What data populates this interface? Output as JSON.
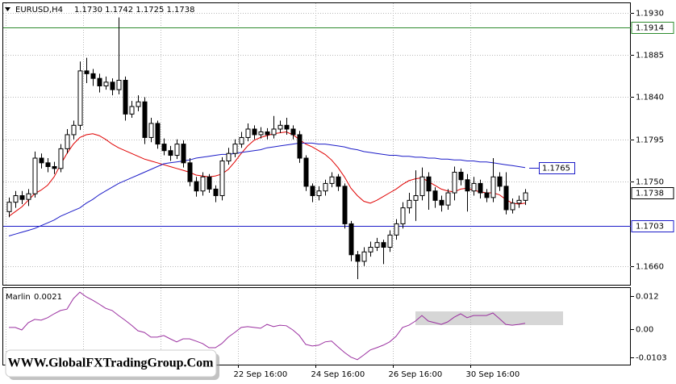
{
  "chart_data": {
    "type": "candlestick",
    "title": "EURUSD,H4",
    "ohlc_text": "1.1730 1.1742 1.1725 1.1738",
    "categories": [
      null,
      null,
      null,
      null,
      null,
      null,
      null,
      null,
      null,
      null,
      null,
      null,
      null,
      null,
      null,
      null,
      null,
      null,
      null,
      null,
      null,
      null,
      null,
      null,
      null,
      null,
      null,
      null,
      null,
      null,
      null,
      null,
      null,
      null,
      null,
      null,
      "22 Sep 16:00",
      null,
      null,
      null,
      null,
      null,
      null,
      null,
      null,
      null,
      null,
      null,
      "24 Sep 16:00",
      null,
      null,
      null,
      null,
      null,
      null,
      null,
      null,
      null,
      null,
      null,
      "26 Sep 16:00",
      null,
      null,
      null,
      null,
      null,
      null,
      null,
      null,
      null,
      null,
      null,
      "30 Sep 16:00",
      null,
      null,
      null,
      null,
      null,
      null,
      null,
      null
    ],
    "open": [
      1.1718,
      1.1728,
      1.1735,
      1.1731,
      1.1737,
      1.1775,
      1.177,
      1.1766,
      1.1764,
      1.1785,
      1.18,
      1.181,
      1.1868,
      1.1865,
      1.186,
      1.1852,
      1.1856,
      1.1848,
      1.1858,
      1.1822,
      1.183,
      1.1835,
      1.1797,
      1.1812,
      1.179,
      1.1783,
      1.1778,
      1.179,
      1.177,
      1.175,
      1.174,
      1.1755,
      1.1742,
      1.1735,
      1.1772,
      1.178,
      1.179,
      1.1797,
      1.1806,
      1.18,
      1.1803,
      1.18,
      1.1806,
      1.181,
      1.1806,
      1.18,
      1.1775,
      1.1745,
      1.1735,
      1.174,
      1.1748,
      1.1755,
      1.1745,
      1.1705,
      1.1672,
      1.1665,
      1.1675,
      1.168,
      1.1685,
      1.168,
      1.1693,
      1.1705,
      1.1722,
      1.173,
      1.1735,
      1.1755,
      1.174,
      1.173,
      1.1725,
      1.1738,
      1.176,
      1.1752,
      1.174,
      1.1748,
      1.1738,
      1.1733,
      1.1755,
      1.1745,
      1.172,
      1.1727,
      1.173
    ],
    "high": [
      1.1733,
      1.174,
      1.174,
      1.1742,
      1.1782,
      1.178,
      1.1775,
      1.1771,
      1.179,
      1.1806,
      1.1815,
      1.1878,
      1.1882,
      1.187,
      1.1865,
      1.1862,
      1.186,
      1.1925,
      1.1862,
      1.1836,
      1.1842,
      1.184,
      1.1818,
      1.1815,
      1.1796,
      1.1788,
      1.1795,
      1.1794,
      1.1775,
      1.1755,
      1.176,
      1.1758,
      1.1746,
      1.1776,
      1.1786,
      1.1795,
      1.1803,
      1.1812,
      1.181,
      1.1808,
      1.1807,
      1.182,
      1.1815,
      1.1818,
      1.181,
      1.1804,
      1.1778,
      1.1748,
      1.1745,
      1.1752,
      1.176,
      1.1758,
      1.1748,
      1.1708,
      1.1676,
      1.168,
      1.1686,
      1.169,
      1.1688,
      1.1698,
      1.171,
      1.1728,
      1.1738,
      1.1762,
      1.1765,
      1.176,
      1.1744,
      1.1735,
      1.1742,
      1.1766,
      1.1764,
      1.1758,
      1.1755,
      1.1752,
      1.1742,
      1.1775,
      1.176,
      1.176,
      1.1732,
      1.1735,
      1.1742
    ],
    "low": [
      1.1712,
      1.1722,
      1.1726,
      1.1724,
      1.1733,
      1.1764,
      1.176,
      1.1758,
      1.176,
      1.178,
      1.1795,
      1.1805,
      1.1855,
      1.1852,
      1.1845,
      1.1848,
      1.1842,
      1.1843,
      1.1815,
      1.1818,
      1.1825,
      1.179,
      1.1792,
      1.1785,
      1.1778,
      1.1772,
      1.1774,
      1.1765,
      1.1745,
      1.1734,
      1.1735,
      1.1738,
      1.1728,
      1.173,
      1.1768,
      1.1776,
      1.1786,
      1.1793,
      1.1795,
      1.1796,
      1.1795,
      1.1796,
      1.1802,
      1.18,
      1.1795,
      1.177,
      1.174,
      1.1728,
      1.173,
      1.1735,
      1.1744,
      1.174,
      1.17,
      1.1665,
      1.1646,
      1.166,
      1.167,
      1.1676,
      1.1662,
      1.1675,
      1.1688,
      1.17,
      1.1716,
      1.1708,
      1.173,
      1.172,
      1.1722,
      1.1718,
      1.172,
      1.173,
      1.1746,
      1.1718,
      1.1735,
      1.1732,
      1.1728,
      1.1728,
      1.174,
      1.1715,
      1.1716,
      1.1722,
      1.1725
    ],
    "close": [
      1.1728,
      1.1735,
      1.1731,
      1.1737,
      1.1775,
      1.177,
      1.1766,
      1.1764,
      1.1785,
      1.18,
      1.181,
      1.1868,
      1.1865,
      1.186,
      1.1852,
      1.1856,
      1.1848,
      1.1858,
      1.1822,
      1.183,
      1.1835,
      1.1797,
      1.1812,
      1.179,
      1.1783,
      1.1778,
      1.179,
      1.177,
      1.175,
      1.174,
      1.1755,
      1.1742,
      1.1735,
      1.1772,
      1.178,
      1.179,
      1.1797,
      1.1806,
      1.18,
      1.1803,
      1.18,
      1.1806,
      1.181,
      1.1806,
      1.18,
      1.1775,
      1.1745,
      1.1735,
      1.174,
      1.1748,
      1.1755,
      1.1745,
      1.1705,
      1.1672,
      1.1665,
      1.1675,
      1.168,
      1.1685,
      1.168,
      1.1693,
      1.1705,
      1.1722,
      1.173,
      1.1735,
      1.1755,
      1.174,
      1.173,
      1.1725,
      1.1738,
      1.176,
      1.1752,
      1.174,
      1.1748,
      1.1738,
      1.1733,
      1.1755,
      1.1745,
      1.172,
      1.1727,
      1.173,
      1.1738
    ],
    "lines": [
      {
        "color": "#e00000",
        "values": [
          1.1713,
          1.1718,
          1.1723,
          1.173,
          1.1737,
          1.1741,
          1.1746,
          1.1755,
          1.1768,
          1.178,
          1.179,
          1.1797,
          1.18,
          1.1801,
          1.1799,
          1.1795,
          1.179,
          1.1786,
          1.1783,
          1.178,
          1.1777,
          1.1774,
          1.1772,
          1.177,
          1.1768,
          1.1766,
          1.1764,
          1.1762,
          1.176,
          1.1757,
          1.1756,
          1.1755,
          1.1756,
          1.1758,
          1.1763,
          1.1771,
          1.178,
          1.1788,
          1.1794,
          1.1797,
          1.1799,
          1.1801,
          1.1802,
          1.1803,
          1.18,
          1.1795,
          1.179,
          1.1787,
          1.1783,
          1.1779,
          1.1773,
          1.1765,
          1.1755,
          1.1743,
          1.1735,
          1.1729,
          1.1727,
          1.173,
          1.1734,
          1.1738,
          1.1742,
          1.1747,
          1.1751,
          1.1753,
          1.1754,
          1.175,
          1.1746,
          1.1742,
          1.174,
          1.1739,
          1.1742,
          1.1743,
          1.1741,
          1.1739,
          1.1738,
          1.1738,
          1.1736,
          1.1731,
          1.1727,
          1.1726,
          1.1727
        ]
      },
      {
        "color": "#1c1cc8",
        "values": [
          1.1692,
          1.1694,
          1.1696,
          1.1698,
          1.17,
          1.1703,
          1.1706,
          1.1709,
          1.1713,
          1.1716,
          1.1719,
          1.1722,
          1.1727,
          1.1731,
          1.1736,
          1.174,
          1.1744,
          1.1748,
          1.1751,
          1.1754,
          1.1757,
          1.176,
          1.1763,
          1.1766,
          1.1769,
          1.177,
          1.1771,
          1.1772,
          1.1773,
          1.1775,
          1.1776,
          1.1777,
          1.1778,
          1.1779,
          1.1779,
          1.178,
          1.1781,
          1.1782,
          1.1783,
          1.1784,
          1.1786,
          1.1787,
          1.1788,
          1.1789,
          1.179,
          1.1791,
          1.1791,
          1.1791,
          1.179,
          1.179,
          1.1789,
          1.1788,
          1.1787,
          1.1785,
          1.1784,
          1.1782,
          1.1781,
          1.178,
          1.1779,
          1.1778,
          1.1778,
          1.1777,
          1.1777,
          1.1776,
          1.1776,
          1.1775,
          1.1775,
          1.1774,
          1.1774,
          1.1773,
          1.1773,
          1.1772,
          1.1772,
          1.1771,
          1.1771,
          1.177,
          1.1769,
          1.1768,
          1.1767,
          1.1766,
          1.1765
        ]
      }
    ],
    "hlines": [
      {
        "value": 1.1914,
        "color": "#2e8b2e"
      },
      {
        "value": 1.1703,
        "color": "#1c1cc8"
      }
    ],
    "ylim": [
      1.164,
      1.1941
    ],
    "yticks": [
      {
        "value": 1.193,
        "label": "1.1930"
      },
      1.1885,
      {
        "value": 1.184,
        "label": "1.1840"
      },
      1.1795,
      {
        "value": 1.175,
        "label": "1.1750"
      },
      {
        "value": 1.166,
        "label": "1.1660"
      }
    ],
    "grid": true,
    "indicator": {
      "type": "line",
      "name": "Marlin",
      "color": "#9b30a0",
      "values": [
        0.0006,
        0.0006,
        -0.0003,
        0.0023,
        0.0035,
        0.0032,
        0.0041,
        0.0055,
        0.0067,
        0.0072,
        0.011,
        0.0133,
        0.0116,
        0.0104,
        0.009,
        0.0075,
        0.0067,
        0.0049,
        0.0032,
        0.0014,
        -0.0006,
        -0.0012,
        -0.0029,
        -0.0029,
        -0.0023,
        -0.0035,
        -0.0046,
        -0.0035,
        -0.0035,
        -0.0043,
        -0.0052,
        -0.0067,
        -0.0067,
        -0.0052,
        -0.0029,
        -0.0012,
        0.0006,
        0.0009,
        0.0006,
        0.0003,
        0.0017,
        0.0009,
        0.0014,
        0.0012,
        -0.0003,
        -0.0023,
        -0.0055,
        -0.0061,
        -0.0058,
        -0.0046,
        -0.0043,
        -0.0064,
        -0.0084,
        -0.0101,
        -0.011,
        -0.0093,
        -0.0075,
        -0.0067,
        -0.0058,
        -0.0046,
        -0.0026,
        0.0006,
        0.0014,
        0.0029,
        0.0049,
        0.0029,
        0.0023,
        0.0017,
        0.0026,
        0.0043,
        0.0055,
        0.0041,
        0.0049,
        0.0049,
        0.0049,
        0.0058,
        0.0038,
        0.0017,
        0.0014,
        0.0017,
        0.0021
      ],
      "ylim": [
        -0.0128,
        0.0151
      ],
      "yticks": [
        0.012,
        {
          "value": 0,
          "label": "0.00"
        },
        -0.0103
      ]
    },
    "watermark": "WWW.GlobalFXTradingGroup.Com"
  }
}
